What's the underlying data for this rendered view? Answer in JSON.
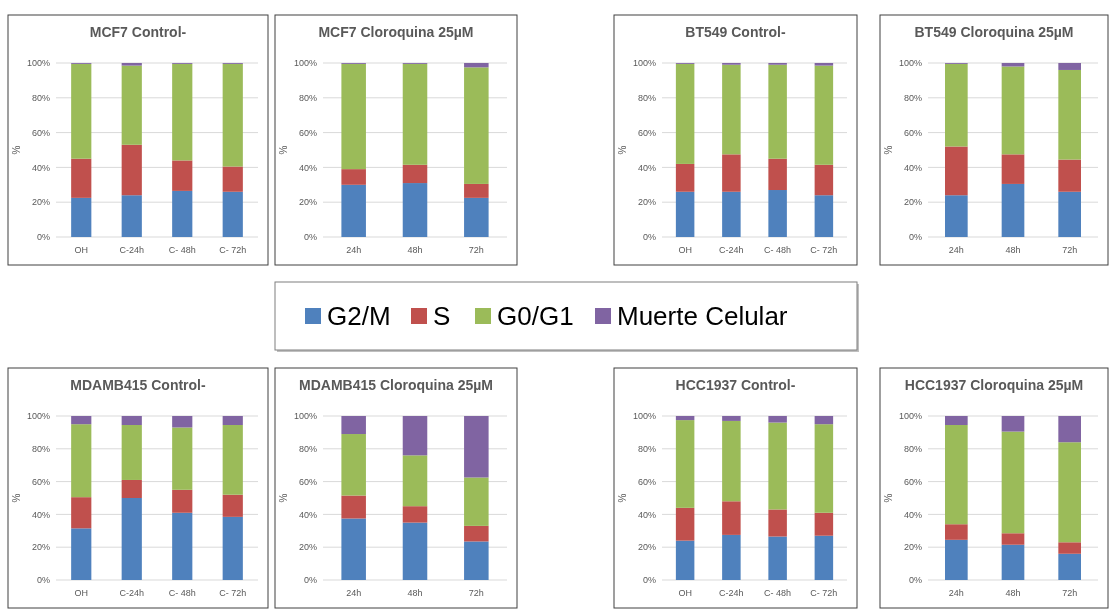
{
  "chart_data": [
    {
      "type": "bar",
      "title": "MCF7 Control-",
      "ylabel": "%",
      "stacked": true,
      "grid": "y",
      "legend": "bottom",
      "categories": [
        "OH",
        "C-24h",
        "C- 48h",
        "C- 72h"
      ],
      "ylim": [
        0,
        100
      ],
      "yticks": [
        {
          "value": 0,
          "label": "0%"
        },
        {
          "value": 20,
          "label": "20%"
        },
        {
          "value": 40,
          "label": "40%"
        },
        {
          "value": 60,
          "label": "60%"
        },
        {
          "value": 80,
          "label": "80%"
        },
        {
          "value": 100,
          "label": "100%"
        }
      ],
      "series": [
        {
          "name": "G2/M",
          "color": "#4f81bd",
          "values": [
            22.5,
            24,
            26.5,
            26
          ]
        },
        {
          "name": "S",
          "color": "#c0504d",
          "values": [
            22.5,
            29,
            17.5,
            14.5
          ]
        },
        {
          "name": "G0/G1",
          "color": "#9bbb59",
          "values": [
            54.5,
            45.5,
            55.5,
            59
          ]
        },
        {
          "name": "Muerte Celular",
          "color": "#8064a2",
          "values": [
            0.5,
            1.5,
            0.5,
            0.5
          ]
        }
      ]
    },
    {
      "type": "bar",
      "title": "MCF7 Cloroquina 25µM",
      "ylabel": "%",
      "stacked": true,
      "grid": "y",
      "categories": [
        "24h",
        "48h",
        "72h"
      ],
      "ylim": [
        0,
        100
      ],
      "yticks": [
        {
          "value": 0,
          "label": "0%"
        },
        {
          "value": 20,
          "label": "20%"
        },
        {
          "value": 40,
          "label": "40%"
        },
        {
          "value": 60,
          "label": "60%"
        },
        {
          "value": 80,
          "label": "80%"
        },
        {
          "value": 100,
          "label": "100%"
        }
      ],
      "series": [
        {
          "color": "#4f81bd",
          "values": [
            30,
            31,
            22.5
          ]
        },
        {
          "color": "#c0504d",
          "values": [
            9,
            10.5,
            8
          ]
        },
        {
          "color": "#9bbb59",
          "values": [
            60.5,
            58,
            67
          ]
        },
        {
          "color": "#8064a2",
          "values": [
            0.5,
            0.5,
            2.5
          ]
        }
      ]
    },
    {
      "type": "bar",
      "title": "BT549 Control-",
      "ylabel": "%",
      "stacked": true,
      "grid": "y",
      "categories": [
        "OH",
        "C-24h",
        "C- 48h",
        "C- 72h"
      ],
      "ylim": [
        0,
        100
      ],
      "yticks": [
        {
          "value": 0,
          "label": "0%"
        },
        {
          "value": 20,
          "label": "20%"
        },
        {
          "value": 40,
          "label": "40%"
        },
        {
          "value": 60,
          "label": "60%"
        },
        {
          "value": 80,
          "label": "80%"
        },
        {
          "value": 100,
          "label": "100%"
        }
      ],
      "series": [
        {
          "color": "#4f81bd",
          "values": [
            26,
            26,
            27,
            24
          ]
        },
        {
          "color": "#c0504d",
          "values": [
            16,
            21.5,
            18,
            17.5
          ]
        },
        {
          "color": "#9bbb59",
          "values": [
            57.5,
            51.5,
            54,
            57
          ]
        },
        {
          "color": "#8064a2",
          "values": [
            0.5,
            1,
            1,
            1.5
          ]
        }
      ]
    },
    {
      "type": "bar",
      "title": "BT549 Cloroquina 25µM",
      "ylabel": "%",
      "stacked": true,
      "grid": "y",
      "categories": [
        "24h",
        "48h",
        "72h"
      ],
      "ylim": [
        0,
        100
      ],
      "yticks": [
        {
          "value": 0,
          "label": "0%"
        },
        {
          "value": 20,
          "label": "20%"
        },
        {
          "value": 40,
          "label": "40%"
        },
        {
          "value": 60,
          "label": "60%"
        },
        {
          "value": 80,
          "label": "80%"
        },
        {
          "value": 100,
          "label": "100%"
        }
      ],
      "series": [
        {
          "color": "#4f81bd",
          "values": [
            24,
            30.5,
            26
          ]
        },
        {
          "color": "#c0504d",
          "values": [
            28,
            17,
            18.5
          ]
        },
        {
          "color": "#9bbb59",
          "values": [
            47.5,
            50.5,
            51.5
          ]
        },
        {
          "color": "#8064a2",
          "values": [
            0.5,
            2,
            4
          ]
        }
      ]
    },
    {
      "type": "bar",
      "title": "MDAMB415 Control-",
      "ylabel": "%",
      "stacked": true,
      "grid": "y",
      "categories": [
        "OH",
        "C-24h",
        "C- 48h",
        "C- 72h"
      ],
      "ylim": [
        0,
        100
      ],
      "yticks": [
        {
          "value": 0,
          "label": "0%"
        },
        {
          "value": 20,
          "label": "20%"
        },
        {
          "value": 40,
          "label": "40%"
        },
        {
          "value": 60,
          "label": "60%"
        },
        {
          "value": 80,
          "label": "80%"
        },
        {
          "value": 100,
          "label": "100%"
        }
      ],
      "series": [
        {
          "color": "#4f81bd",
          "values": [
            31.5,
            50,
            41,
            38.5
          ]
        },
        {
          "color": "#c0504d",
          "values": [
            19,
            11,
            14,
            13.5
          ]
        },
        {
          "color": "#9bbb59",
          "values": [
            44.5,
            33.5,
            38,
            42.5
          ]
        },
        {
          "color": "#8064a2",
          "values": [
            5,
            5.5,
            7,
            5.5
          ]
        }
      ]
    },
    {
      "type": "bar",
      "title": "MDAMB415 Cloroquina 25µM",
      "ylabel": "%",
      "stacked": true,
      "grid": "y",
      "categories": [
        "24h",
        "48h",
        "72h"
      ],
      "ylim": [
        0,
        100
      ],
      "yticks": [
        {
          "value": 0,
          "label": "0%"
        },
        {
          "value": 20,
          "label": "20%"
        },
        {
          "value": 40,
          "label": "40%"
        },
        {
          "value": 60,
          "label": "60%"
        },
        {
          "value": 80,
          "label": "80%"
        },
        {
          "value": 100,
          "label": "100%"
        }
      ],
      "series": [
        {
          "color": "#4f81bd",
          "values": [
            37.5,
            35,
            23.5
          ]
        },
        {
          "color": "#c0504d",
          "values": [
            14,
            10,
            9.5
          ]
        },
        {
          "color": "#9bbb59",
          "values": [
            37.5,
            31,
            29.5
          ]
        },
        {
          "color": "#8064a2",
          "values": [
            11,
            24,
            37.5
          ]
        }
      ]
    },
    {
      "type": "bar",
      "title": "HCC1937 Control-",
      "ylabel": "%",
      "stacked": true,
      "grid": "y",
      "categories": [
        "OH",
        "C-24h",
        "C- 48h",
        "C- 72h"
      ],
      "ylim": [
        0,
        100
      ],
      "yticks": [
        {
          "value": 0,
          "label": "0%"
        },
        {
          "value": 20,
          "label": "20%"
        },
        {
          "value": 40,
          "label": "40%"
        },
        {
          "value": 60,
          "label": "60%"
        },
        {
          "value": 80,
          "label": "80%"
        },
        {
          "value": 100,
          "label": "100%"
        }
      ],
      "series": [
        {
          "color": "#4f81bd",
          "values": [
            24,
            27.5,
            26.5,
            27
          ]
        },
        {
          "color": "#c0504d",
          "values": [
            20,
            20.5,
            16.5,
            14
          ]
        },
        {
          "color": "#9bbb59",
          "values": [
            53.5,
            49,
            53,
            54
          ]
        },
        {
          "color": "#8064a2",
          "values": [
            2.5,
            3,
            4,
            5
          ]
        }
      ]
    },
    {
      "type": "bar",
      "title": "HCC1937 Cloroquina 25µM",
      "ylabel": "%",
      "stacked": true,
      "grid": "y",
      "categories": [
        "24h",
        "48h",
        "72h"
      ],
      "ylim": [
        0,
        100
      ],
      "yticks": [
        {
          "value": 0,
          "label": "0%"
        },
        {
          "value": 20,
          "label": "20%"
        },
        {
          "value": 40,
          "label": "40%"
        },
        {
          "value": 60,
          "label": "60%"
        },
        {
          "value": 80,
          "label": "80%"
        },
        {
          "value": 100,
          "label": "100%"
        }
      ],
      "series": [
        {
          "color": "#4f81bd",
          "values": [
            24.5,
            21.5,
            16
          ]
        },
        {
          "color": "#c0504d",
          "values": [
            9.5,
            7,
            7
          ]
        },
        {
          "color": "#9bbb59",
          "values": [
            60.5,
            62,
            61
          ]
        },
        {
          "color": "#8064a2",
          "values": [
            5.5,
            9.5,
            16
          ]
        }
      ]
    }
  ]
}
